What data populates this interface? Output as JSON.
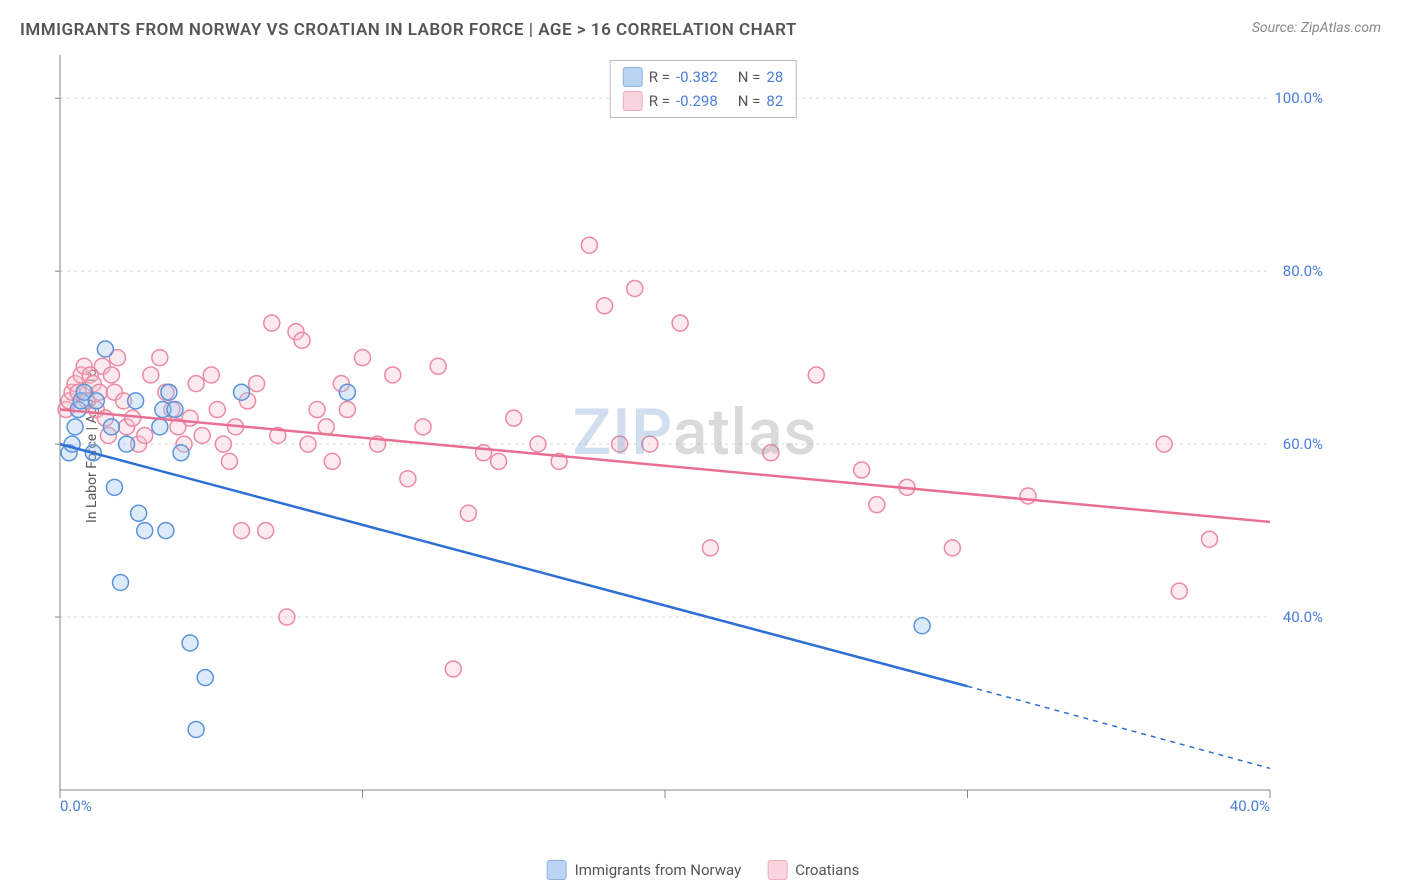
{
  "title": "IMMIGRANTS FROM NORWAY VS CROATIAN IN LABOR FORCE | AGE > 16 CORRELATION CHART",
  "source": "Source: ZipAtlas.com",
  "y_axis_label": "In Labor Force | Age > 16",
  "watermark_z": "ZIP",
  "watermark_rest": "atlas",
  "chart": {
    "type": "scatter",
    "background_color": "#ffffff",
    "grid_color": "#d8d8d8",
    "grid_dash": "3,4",
    "axis_line_color": "#888888",
    "tick_label_color": "#4a7fd8",
    "tick_fontsize": 15,
    "xlim": [
      0,
      40
    ],
    "ylim": [
      20,
      105
    ],
    "x_ticks": [
      0,
      10,
      20,
      30,
      40
    ],
    "x_tick_labels": [
      "0.0%",
      "",
      "",
      "",
      "40.0%"
    ],
    "y_ticks": [
      40,
      60,
      80,
      100
    ],
    "y_tick_labels": [
      "40.0%",
      "60.0%",
      "80.0%",
      "100.0%"
    ],
    "marker_radius": 8,
    "marker_fill_opacity": 0.35,
    "marker_stroke_width": 1.5,
    "line_width": 2.5,
    "series": [
      {
        "name": "Immigrants from Norway",
        "color_fill": "#9ec2ed",
        "color_stroke": "#5a94db",
        "line_color": "#2e6fd6",
        "r_value": "-0.382",
        "n_value": "28",
        "trend": {
          "x1": 0,
          "y1": 60,
          "x2": 30,
          "y2": 32,
          "x2_dash": 40,
          "y2_dash": 22.5
        },
        "points": [
          [
            0.3,
            59
          ],
          [
            0.4,
            60
          ],
          [
            0.5,
            62
          ],
          [
            0.6,
            64
          ],
          [
            0.7,
            65
          ],
          [
            0.8,
            66
          ],
          [
            1.1,
            59
          ],
          [
            1.2,
            65
          ],
          [
            1.5,
            71
          ],
          [
            1.7,
            62
          ],
          [
            1.8,
            55
          ],
          [
            2.0,
            44
          ],
          [
            2.2,
            60
          ],
          [
            2.5,
            65
          ],
          [
            2.6,
            52
          ],
          [
            2.8,
            50
          ],
          [
            3.3,
            62
          ],
          [
            3.4,
            64
          ],
          [
            3.5,
            50
          ],
          [
            3.6,
            66
          ],
          [
            3.8,
            64
          ],
          [
            4.0,
            59
          ],
          [
            4.3,
            37
          ],
          [
            4.8,
            33
          ],
          [
            4.5,
            27
          ],
          [
            6.0,
            66
          ],
          [
            9.5,
            66
          ],
          [
            28.5,
            39
          ]
        ]
      },
      {
        "name": "Croatians",
        "color_fill": "#f7c3cf",
        "color_stroke": "#ec8aa3",
        "line_color": "#e86f92",
        "r_value": "-0.298",
        "n_value": "82",
        "trend": {
          "x1": 0,
          "y1": 64,
          "x2": 40,
          "y2": 51
        },
        "points": [
          [
            0.2,
            64
          ],
          [
            0.3,
            65
          ],
          [
            0.4,
            66
          ],
          [
            0.5,
            67
          ],
          [
            0.6,
            66
          ],
          [
            0.7,
            68
          ],
          [
            0.8,
            69
          ],
          [
            0.9,
            65
          ],
          [
            1.0,
            68
          ],
          [
            1.1,
            67
          ],
          [
            1.2,
            64
          ],
          [
            1.3,
            66
          ],
          [
            1.4,
            69
          ],
          [
            1.5,
            63
          ],
          [
            1.6,
            61
          ],
          [
            1.7,
            68
          ],
          [
            1.8,
            66
          ],
          [
            1.9,
            70
          ],
          [
            2.1,
            65
          ],
          [
            2.2,
            62
          ],
          [
            2.4,
            63
          ],
          [
            2.6,
            60
          ],
          [
            2.8,
            61
          ],
          [
            3.0,
            68
          ],
          [
            3.3,
            70
          ],
          [
            3.5,
            66
          ],
          [
            3.7,
            64
          ],
          [
            3.9,
            62
          ],
          [
            4.1,
            60
          ],
          [
            4.3,
            63
          ],
          [
            4.5,
            67
          ],
          [
            4.7,
            61
          ],
          [
            5.0,
            68
          ],
          [
            5.2,
            64
          ],
          [
            5.4,
            60
          ],
          [
            5.6,
            58
          ],
          [
            5.8,
            62
          ],
          [
            6.0,
            50
          ],
          [
            6.2,
            65
          ],
          [
            6.5,
            67
          ],
          [
            6.8,
            50
          ],
          [
            7.0,
            74
          ],
          [
            7.2,
            61
          ],
          [
            7.5,
            40
          ],
          [
            7.8,
            73
          ],
          [
            8.0,
            72
          ],
          [
            8.2,
            60
          ],
          [
            8.5,
            64
          ],
          [
            8.8,
            62
          ],
          [
            9.0,
            58
          ],
          [
            9.3,
            67
          ],
          [
            9.5,
            64
          ],
          [
            10.0,
            70
          ],
          [
            10.5,
            60
          ],
          [
            11.0,
            68
          ],
          [
            11.5,
            56
          ],
          [
            12.0,
            62
          ],
          [
            12.5,
            69
          ],
          [
            13.0,
            34
          ],
          [
            13.5,
            52
          ],
          [
            14.0,
            59
          ],
          [
            14.5,
            58
          ],
          [
            15.0,
            63
          ],
          [
            15.8,
            60
          ],
          [
            16.5,
            58
          ],
          [
            17.5,
            83
          ],
          [
            18.0,
            76
          ],
          [
            18.5,
            60
          ],
          [
            19.0,
            78
          ],
          [
            19.5,
            60
          ],
          [
            20.5,
            74
          ],
          [
            21.5,
            48
          ],
          [
            23.5,
            59
          ],
          [
            25.0,
            68
          ],
          [
            26.5,
            57
          ],
          [
            27.0,
            53
          ],
          [
            28.0,
            55
          ],
          [
            29.5,
            48
          ],
          [
            32.0,
            54
          ],
          [
            36.5,
            60
          ],
          [
            37.0,
            43
          ],
          [
            38.0,
            49
          ]
        ]
      }
    ]
  },
  "legend_bottom": [
    {
      "label": "Immigrants from Norway",
      "fill": "#9ec2ed",
      "stroke": "#5a94db"
    },
    {
      "label": "Croatians",
      "fill": "#f7c3cf",
      "stroke": "#ec8aa3"
    }
  ]
}
